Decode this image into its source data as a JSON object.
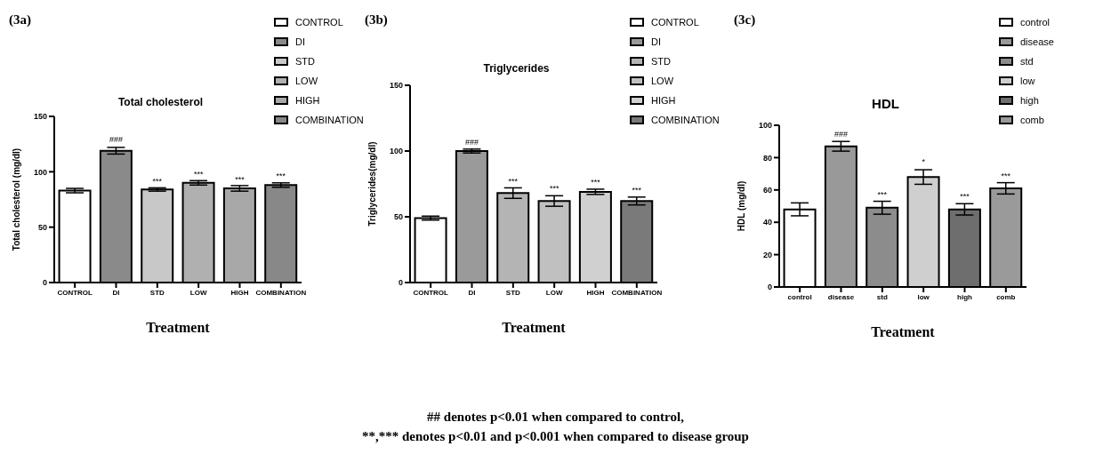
{
  "chart_data": [
    {
      "type": "bar",
      "subtitle": "(3a)",
      "title": "Total cholesterol",
      "xlabel": "Treatment",
      "ylabel": "Total cholesterol (mg/dl)",
      "categories": [
        "CONTROL",
        "DI",
        "STD",
        "LOW",
        "HIGH",
        "COMBINATION"
      ],
      "series": [
        {
          "name": "CONTROL",
          "color": "#ffffff",
          "values": [
            83,
            null,
            null,
            null,
            null,
            null
          ],
          "errors": [
            2,
            null,
            null,
            null,
            null,
            null
          ]
        },
        {
          "name": "DI",
          "color": "#8a8a8a",
          "values": [
            null,
            119,
            null,
            null,
            null,
            null
          ],
          "errors": [
            null,
            3,
            null,
            null,
            null,
            null
          ]
        },
        {
          "name": "STD",
          "color": "#c8c8c8",
          "values": [
            null,
            null,
            84,
            null,
            null,
            null
          ],
          "errors": [
            null,
            null,
            1.5,
            null,
            null,
            null
          ]
        },
        {
          "name": "LOW",
          "color": "#b0b0b0",
          "values": [
            null,
            null,
            null,
            90,
            null,
            null
          ],
          "errors": [
            null,
            null,
            null,
            2,
            null,
            null
          ]
        },
        {
          "name": "HIGH",
          "color": "#a8a8a8",
          "values": [
            null,
            null,
            null,
            null,
            85,
            null
          ],
          "errors": [
            null,
            null,
            null,
            null,
            2.5,
            null
          ]
        },
        {
          "name": "COMBINATION",
          "color": "#888888",
          "values": [
            null,
            null,
            null,
            null,
            null,
            88
          ],
          "errors": [
            null,
            null,
            null,
            null,
            null,
            2
          ]
        }
      ],
      "ylim": [
        0,
        150
      ],
      "yticks": [
        0,
        50,
        100,
        150
      ],
      "legend": "top right",
      "annotations": [
        {
          "text": "###",
          "x": "DI",
          "y": 122.5
        },
        {
          "text": "***",
          "x": "STD",
          "y": 85
        },
        {
          "text": "***",
          "x": "LOW",
          "y": 91.5
        },
        {
          "text": "***",
          "x": "HIGH",
          "y": 87
        },
        {
          "text": "***",
          "x": "COMBINATION",
          "y": 90
        }
      ]
    },
    {
      "type": "bar",
      "subtitle": "(3b)",
      "title": "Triglycerides",
      "xlabel": "Treatment",
      "ylabel": "Triglycerides(mg/dl)",
      "categories": [
        "CONTROL",
        "DI",
        "STD",
        "LOW",
        "HIGH",
        "COMBINATION"
      ],
      "series": [
        {
          "name": "CONTROL",
          "color": "#ffffff",
          "values": [
            49,
            null,
            null,
            null,
            null,
            null
          ],
          "errors": [
            1.5,
            null,
            null,
            null,
            null,
            null
          ]
        },
        {
          "name": "DI",
          "color": "#9a9a9a",
          "values": [
            null,
            100,
            null,
            null,
            null,
            null
          ],
          "errors": [
            null,
            1.5,
            null,
            null,
            null,
            null
          ]
        },
        {
          "name": "STD",
          "color": "#b4b4b4",
          "values": [
            null,
            null,
            68,
            null,
            null,
            null
          ],
          "errors": [
            null,
            null,
            4,
            null,
            null,
            null
          ]
        },
        {
          "name": "LOW",
          "color": "#c0c0c0",
          "values": [
            null,
            null,
            null,
            62,
            null,
            null
          ],
          "errors": [
            null,
            null,
            null,
            4,
            null,
            null
          ]
        },
        {
          "name": "HIGH",
          "color": "#d0d0d0",
          "values": [
            null,
            null,
            null,
            null,
            69,
            null
          ],
          "errors": [
            null,
            null,
            null,
            null,
            2,
            null
          ]
        },
        {
          "name": "COMBINATION",
          "color": "#7a7a7a",
          "values": [
            null,
            null,
            null,
            null,
            null,
            62
          ],
          "errors": [
            null,
            null,
            null,
            null,
            null,
            3
          ]
        }
      ],
      "ylim": [
        0,
        150
      ],
      "yticks": [
        0,
        50,
        100,
        150
      ],
      "legend": "top right",
      "annotations": [
        {
          "text": "###",
          "x": "DI",
          "y": 101.5
        },
        {
          "text": "***",
          "x": "STD",
          "y": 71.5
        },
        {
          "text": "***",
          "x": "LOW",
          "y": 66.5
        },
        {
          "text": "***",
          "x": "HIGH",
          "y": 71
        },
        {
          "text": "***",
          "x": "COMBINATION",
          "y": 65
        }
      ]
    },
    {
      "type": "bar",
      "subtitle": "(3c)",
      "title": "HDL",
      "xlabel": "Treatment",
      "ylabel": "HDL (mg/dl)",
      "categories": [
        "control",
        "disease",
        "std",
        "low",
        "high",
        "comb"
      ],
      "series": [
        {
          "name": "control",
          "color": "#ffffff",
          "values": [
            48,
            null,
            null,
            null,
            null,
            null
          ],
          "errors": [
            4,
            null,
            null,
            null,
            null,
            null
          ]
        },
        {
          "name": "disease",
          "color": "#999999",
          "values": [
            null,
            87,
            null,
            null,
            null,
            null
          ],
          "errors": [
            null,
            3,
            null,
            null,
            null,
            null
          ]
        },
        {
          "name": "std",
          "color": "#8c8c8c",
          "values": [
            null,
            null,
            49,
            null,
            null,
            null
          ],
          "errors": [
            null,
            null,
            4,
            null,
            null,
            null
          ]
        },
        {
          "name": "low",
          "color": "#cfcfcf",
          "values": [
            null,
            null,
            null,
            68,
            null,
            null
          ],
          "errors": [
            null,
            null,
            null,
            4.5,
            null,
            null
          ]
        },
        {
          "name": "high",
          "color": "#6e6e6e",
          "values": [
            null,
            null,
            null,
            null,
            48,
            null
          ],
          "errors": [
            null,
            null,
            null,
            null,
            3.5,
            null
          ]
        },
        {
          "name": "comb",
          "color": "#9a9a9a",
          "values": [
            null,
            null,
            null,
            null,
            null,
            61
          ],
          "errors": [
            null,
            null,
            null,
            null,
            null,
            3.5
          ]
        }
      ],
      "ylim": [
        0,
        100
      ],
      "yticks": [
        0,
        20,
        40,
        60,
        80,
        100
      ],
      "legend": "top right",
      "annotations": [
        {
          "text": "###",
          "x": "disease",
          "y": 90
        },
        {
          "text": "***",
          "x": "std",
          "y": 53
        },
        {
          "text": "*",
          "x": "low",
          "y": 73
        },
        {
          "text": "***",
          "x": "high",
          "y": 51.5
        },
        {
          "text": "***",
          "x": "comb",
          "y": 64.5
        }
      ]
    },
    {
      "type": "other",
      "annotations": [
        "## denotes p<0.01 when compared to control,",
        "**,*** denotes p<0.01 and p<0.001 when compared to disease group"
      ]
    }
  ]
}
